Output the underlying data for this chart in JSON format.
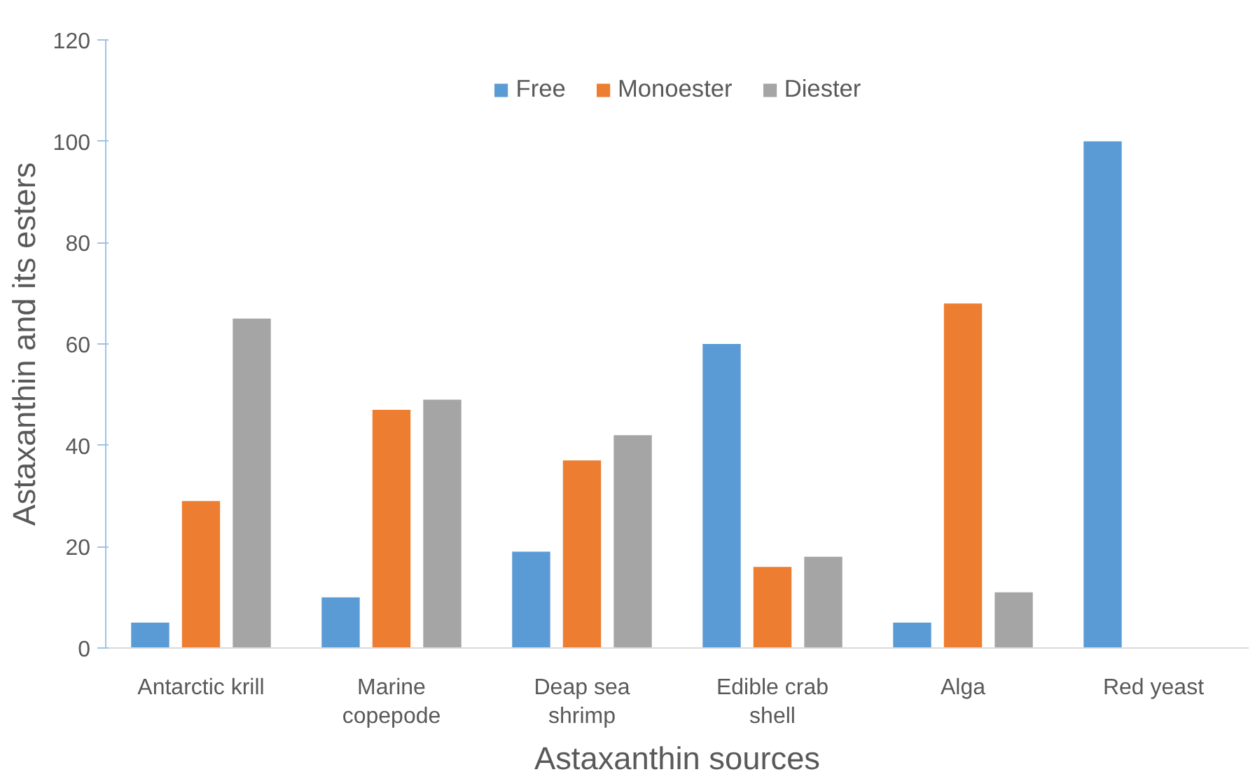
{
  "chart_data": {
    "type": "bar",
    "xlabel": "Astaxanthin sources",
    "ylabel": "Astaxanthin and its esters",
    "categories": [
      "Antarctic krill",
      "Marine\ncopepode",
      "Deap sea\nshrimp",
      "Edible crab\nshell",
      "Alga",
      "Red yeast"
    ],
    "series": [
      {
        "name": "Free",
        "color": "#5b9bd5",
        "values": [
          5,
          10,
          19,
          60,
          5,
          100
        ]
      },
      {
        "name": "Monoester",
        "color": "#ed7d31",
        "values": [
          29,
          47,
          37,
          16,
          68,
          null
        ]
      },
      {
        "name": "Diester",
        "color": "#a5a5a5",
        "values": [
          65,
          49,
          42,
          18,
          11,
          null
        ]
      }
    ],
    "ylim": [
      0,
      120
    ],
    "yticks": [
      0,
      20,
      40,
      60,
      80,
      100,
      120
    ],
    "grid": false,
    "legend": "top"
  }
}
